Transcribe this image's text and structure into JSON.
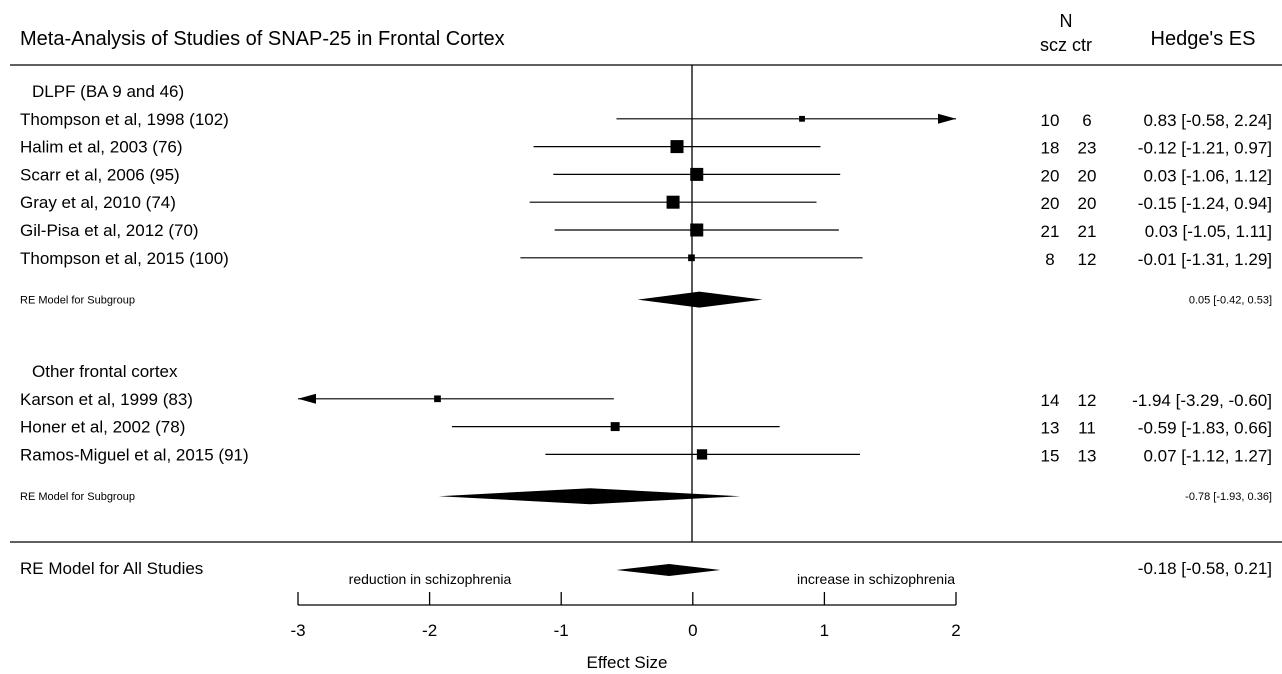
{
  "chart_data": {
    "type": "forest",
    "title": "Meta-Analysis of Studies of SNAP-25 in Frontal Cortex",
    "col_n_header": "N",
    "col_n_sub": "scz ctr",
    "col_es_header": "Hedge's ES",
    "xlabel": "Effect Size",
    "xlim": [
      -3,
      2
    ],
    "xticks": [
      -3,
      -2,
      -1,
      0,
      1,
      2
    ],
    "left_annotation": "reduction in schizophrenia",
    "right_annotation": "increase in schizophrenia",
    "groups": [
      {
        "label": "DLPF (BA 9 and 46)",
        "studies": [
          {
            "label": "Thompson et al, 1998 (102)",
            "scz": "10",
            "ctr": "6",
            "es": 0.83,
            "lo": -0.58,
            "hi": 2.24,
            "text": "0.83 [-0.58,  2.24]",
            "weight": 0.2
          },
          {
            "label": "Halim et al, 2003 (76)",
            "scz": "18",
            "ctr": "23",
            "es": -0.12,
            "lo": -1.21,
            "hi": 0.97,
            "text": "-0.12 [-1.21,  0.97]",
            "weight": 1.0
          },
          {
            "label": "Scarr et al, 2006 (95)",
            "scz": "20",
            "ctr": "20",
            "es": 0.03,
            "lo": -1.06,
            "hi": 1.12,
            "text": "0.03 [-1.06,  1.12]",
            "weight": 1.0
          },
          {
            "label": "Gray et al, 2010 (74)",
            "scz": "20",
            "ctr": "20",
            "es": -0.15,
            "lo": -1.24,
            "hi": 0.94,
            "text": "-0.15 [-1.24,  0.94]",
            "weight": 1.0
          },
          {
            "label": "Gil-Pisa et al, 2012 (70)",
            "scz": "21",
            "ctr": "21",
            "es": 0.03,
            "lo": -1.05,
            "hi": 1.11,
            "text": "0.03 [-1.05,  1.11]",
            "weight": 1.0
          },
          {
            "label": "Thompson et al, 2015 (100)",
            "scz": "8",
            "ctr": "12",
            "es": -0.01,
            "lo": -1.31,
            "hi": 1.29,
            "text": "-0.01 [-1.31,  1.29]",
            "weight": 0.3
          }
        ],
        "summary": {
          "label": "RE Model for Subgroup",
          "es": 0.05,
          "lo": -0.42,
          "hi": 0.53,
          "text": "0.05 [-0.42, 0.53]"
        }
      },
      {
        "label": "Other frontal cortex",
        "studies": [
          {
            "label": "Karson et al, 1999 (83)",
            "scz": "14",
            "ctr": "12",
            "es": -1.94,
            "lo": -3.29,
            "hi": -0.6,
            "text": "-1.94 [-3.29, -0.60]",
            "weight": 0.3
          },
          {
            "label": "Honer et al, 2002 (78)",
            "scz": "13",
            "ctr": "11",
            "es": -0.59,
            "lo": -1.83,
            "hi": 0.66,
            "text": "-0.59 [-1.83,  0.66]",
            "weight": 0.55
          },
          {
            "label": "Ramos-Miguel et al, 2015 (91)",
            "scz": "15",
            "ctr": "13",
            "es": 0.07,
            "lo": -1.12,
            "hi": 1.27,
            "text": "0.07 [-1.12,  1.27]",
            "weight": 0.7
          }
        ],
        "summary": {
          "label": "RE Model for Subgroup",
          "es": -0.78,
          "lo": -1.93,
          "hi": 0.36,
          "text": "-0.78 [-1.93, 0.36]"
        }
      }
    ],
    "overall": {
      "label": "RE Model for All Studies",
      "es": -0.18,
      "lo": -0.58,
      "hi": 0.21,
      "text": "-0.18 [-0.58,  0.21]"
    }
  }
}
